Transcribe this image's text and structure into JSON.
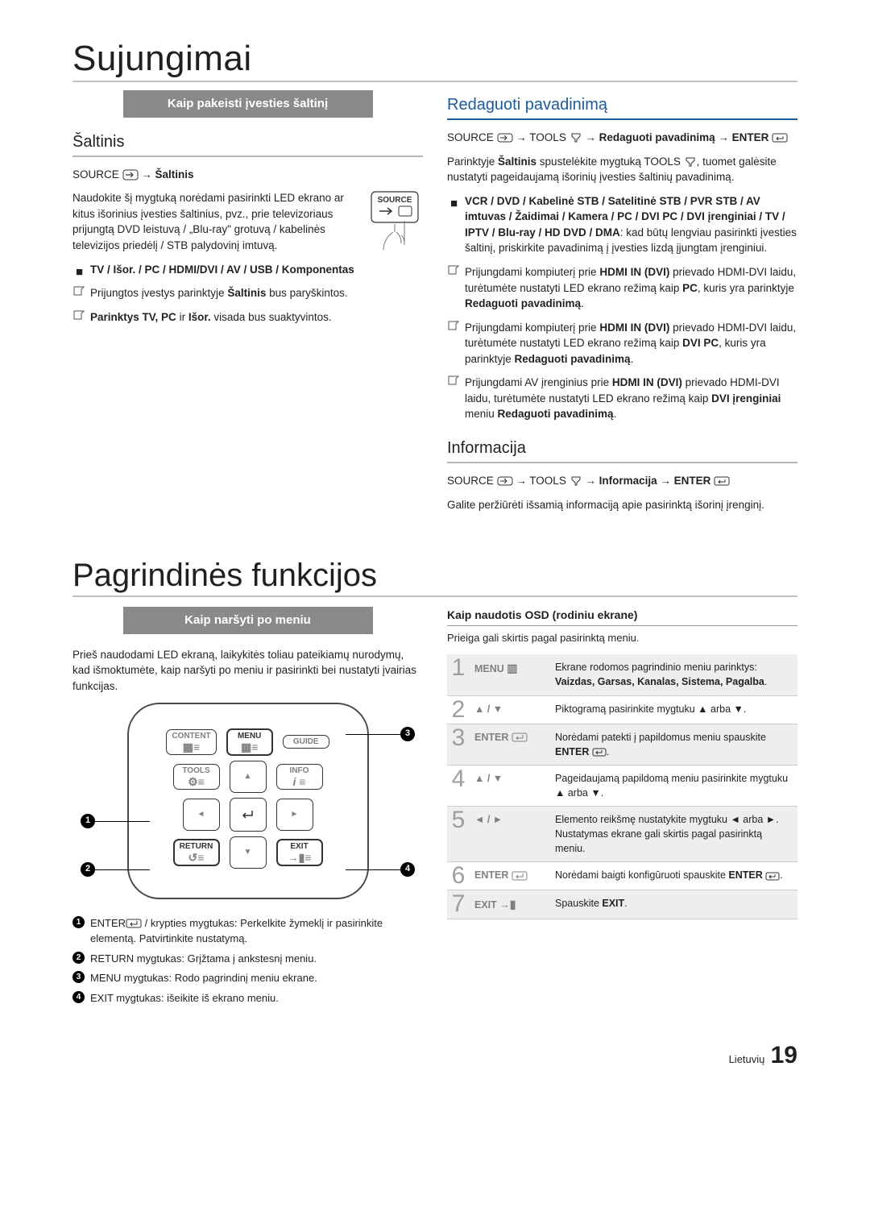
{
  "titles": {
    "main": "Sujungimai",
    "main2": "Pagrindinės funkcijos"
  },
  "bands": {
    "left": "Kaip pakeisti įvesties šaltinį",
    "right_header": "Redaguoti pavadinimą",
    "bottom_left": "Kaip naršyti po meniu"
  },
  "left": {
    "section": "Šaltinis",
    "path_prefix": "SOURCE",
    "path_to": "→ Šaltinis",
    "source_btn_label": "SOURCE",
    "body1_a": "Naudokite šį mygtuką norėdami pasirinkti LED ekrano ar kitus išorinius įvesties šaltinius, pvz., prie televizoriaus prijungtą DVD leistuvą / „Blu-ray\" grotuvą / kabelinės televizijos priedėlį / STB palydovinį imtuvą.",
    "bullet1": "TV / Išor. / PC / HDMI/DVI / AV / USB / Komponentas",
    "note1_a": "Prijungtos įvestys parinktyje ",
    "note1_b": "Šaltinis",
    "note1_c": " bus paryškintos.",
    "note2_a": "Parinktys TV, PC",
    "note2_b": " ir ",
    "note2_c": "Išor.",
    "note2_d": " visada bus suaktyvintos."
  },
  "right": {
    "path1_a": "SOURCE",
    "path1_b": "→ TOOLS",
    "path1_c": " → Redaguoti pavadinimą → ENTER",
    "intro_a": "Parinktyje ",
    "intro_b": "Šaltinis",
    "intro_c": " spustelėkite mygtuką TOOLS",
    "intro_d": ", tuomet galėsite nustatyti pageidaujamą išorinių įvesties šaltinių pavadinimą.",
    "bullet_a": "VCR / DVD / Kabelinė STB / Satelitinė STB / PVR STB / AV imtuvas / Žaidimai / Kamera / PC / DVI PC / DVI įrenginiai / TV / IPTV / Blu-ray / HD DVD / DMA",
    "bullet_b": ": kad būtų lengviau pasirinkti įvesties šaltinį, priskirkite pavadinimą į įvesties lizdą įjungtam įrenginiui.",
    "n1_a": "Prijungdami kompiuterį prie ",
    "n1_b": "HDMI IN (DVI)",
    "n1_c": " prievado HDMI-DVI laidu, turėtumėte nustatyti LED ekrano režimą kaip ",
    "n1_d": "PC",
    "n1_e": ", kuris yra parinktyje ",
    "n1_f": "Redaguoti pavadinimą",
    "n1_g": ".",
    "n2_a": "Prijungdami kompiuterį prie ",
    "n2_d": "DVI PC",
    "n2_e": ", kuris yra parinktyje ",
    "n3_a": "Prijungdami AV įrenginius prie ",
    "n3_d": "DVI įrenginiai",
    "n3_e": " meniu ",
    "info_head": "Informacija",
    "info_path_a": "SOURCE",
    "info_path_b": " → TOOLS",
    "info_path_c": "→ Informacija → ENTER",
    "info_body": "Galite peržiūrėti išsamią informaciją apie pasirinktą išorinį įrenginį."
  },
  "nav": {
    "intro": "Prieš naudodami LED ekraną, laikykitės toliau pateikiamų nurodymų, kad išmoktumėte, kaip naršyti po meniu ir pasirinkti bei nustatyti įvairias funkcijas.",
    "remote": {
      "content": "CONTENT",
      "menu": "MENU",
      "guide": "GUIDE",
      "tools": "TOOLS",
      "info": "INFO",
      "return": "RETURN",
      "exit": "EXIT"
    },
    "legend": [
      {
        "n": "1",
        "t_a": "ENTER",
        "t_b": " / krypties mygtukas: Perkelkite žymeklį ir pasirinkite elementą. Patvirtinkite nustatymą."
      },
      {
        "n": "2",
        "t_a": "RETURN",
        "t_b": " mygtukas: Grįžtama į ankstesnį meniu."
      },
      {
        "n": "3",
        "t_a": "MENU",
        "t_b": " mygtukas: Rodo pagrindinį meniu ekrane."
      },
      {
        "n": "4",
        "t_a": "EXIT",
        "t_b": " mygtukas: išeikite iš ekrano meniu."
      }
    ]
  },
  "osd": {
    "head": "Kaip naudotis OSD (rodiniu ekrane)",
    "sub": "Prieiga gali skirtis pagal pasirinktą meniu.",
    "rows": [
      {
        "n": "1",
        "k": "MENU",
        "k_sym": "menu",
        "d_a": "Ekrane rodomos pagrindinio meniu parinktys:",
        "d_b": "Vaizdas, Garsas, Kanalas, Sistema, Pagalba",
        "d_c": ".",
        "shade": true
      },
      {
        "n": "2",
        "k": "▲ / ▼",
        "d_a": "Piktogramą pasirinkite mygtuku ▲ arba ▼."
      },
      {
        "n": "3",
        "k": "ENTER",
        "k_sym": "enter",
        "d_a": "Norėdami patekti į papildomus meniu spauskite ",
        "d_b": "ENTER",
        "d_c": ".",
        "shade": true
      },
      {
        "n": "4",
        "k": "▲ / ▼",
        "d_a": "Pageidaujamą papildomą meniu pasirinkite mygtuku ▲ arba ▼."
      },
      {
        "n": "5",
        "k": "◄ / ►",
        "d_a": "Elemento reikšmę nustatykite mygtuku ◄ arba ►. Nustatymas ekrane gali skirtis pagal pasirinktą meniu.",
        "shade": true
      },
      {
        "n": "6",
        "k": "ENTER",
        "k_sym": "enter",
        "d_a": "Norėdami baigti konfigūruoti spauskite ",
        "d_b": "ENTER",
        "d_c": "."
      },
      {
        "n": "7",
        "k": "EXIT →",
        "k_sym": "exit",
        "d_a": "Spauskite ",
        "d_b": "EXIT",
        "d_c": ".",
        "shade": true
      }
    ]
  },
  "footer": {
    "lang": "Lietuvių",
    "page": "19"
  }
}
